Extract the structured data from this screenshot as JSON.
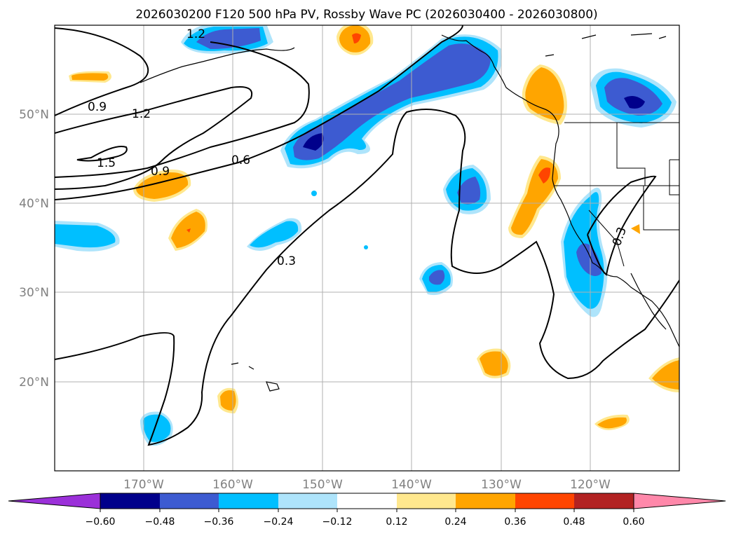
{
  "title": "2026030200 F120 500 hPa PV, Rossby Wave PC (2026030400 - 2026030800)",
  "map": {
    "lon_range": [
      -180,
      -110
    ],
    "lat_range": [
      10,
      60
    ],
    "lat_ticks": [
      "50°N",
      "40°N",
      "30°N",
      "20°N"
    ],
    "lon_ticks": [
      "170°W",
      "160°W",
      "150°W",
      "140°W",
      "130°W",
      "120°W"
    ],
    "gridlines": true
  },
  "contour_labels": [
    "1.2",
    "0.9",
    "1.2",
    "1.5",
    "0.9",
    "0.6",
    "0.3",
    "0.3"
  ],
  "colorbar": {
    "tick_labels": [
      "−0.60",
      "−0.48",
      "−0.36",
      "−0.24",
      "−0.12",
      "0.12",
      "0.24",
      "0.36",
      "0.48",
      "0.60"
    ],
    "colors": [
      "#9b30d9",
      "#00008b",
      "#3d5bd1",
      "#00bfff",
      "#aee4fb",
      "#ffffff",
      "#ffe88e",
      "#ffa500",
      "#ff4500",
      "#b22222",
      "#ff88aa"
    ],
    "extend": "both"
  },
  "legend_colors": {
    "neg_strong": "#00008b",
    "neg_mid": "#3d5bd1",
    "neg_light": "#00bfff",
    "neg_faint": "#aee4fb",
    "pos_faint": "#ffe88e",
    "pos_mid": "#ffa500",
    "pos_strong": "#ff4500"
  }
}
